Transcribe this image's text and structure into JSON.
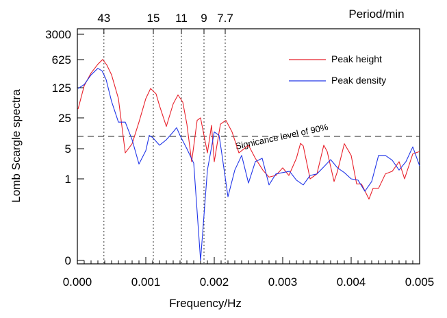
{
  "chart_data": {
    "type": "line",
    "xlabel": "Frequency/Hz",
    "ylabel": "Lomb Scargle spectra",
    "top_axis_label": "Period/min",
    "xlim": [
      0,
      0.005
    ],
    "x_ticks": [
      "0.000",
      "0.001",
      "0.002",
      "0.003",
      "0.004",
      "0.005"
    ],
    "x_tick_values": [
      0,
      0.001,
      0.002,
      0.003,
      0.004,
      0.005
    ],
    "y_ticks": [
      {
        "label": "3000",
        "value": 3000
      },
      {
        "label": "625",
        "value": 625
      },
      {
        "label": "125",
        "value": 125
      },
      {
        "label": "25",
        "value": 25
      },
      {
        "label": "5",
        "value": 5
      },
      {
        "label": "1",
        "value": 1
      },
      {
        "label": "0",
        "value": 0.001
      }
    ],
    "y_scale": "log",
    "top_ticks": [
      {
        "label": "43",
        "freq": 0.000388
      },
      {
        "label": "15",
        "freq": 0.00111
      },
      {
        "label": "11",
        "freq": 0.00152
      },
      {
        "label": "9",
        "freq": 0.00185
      },
      {
        "label": "7.7",
        "freq": 0.00216
      }
    ],
    "significance": {
      "label": "Signicance level of 90%",
      "value": 9.5
    },
    "legend_position": "top-right",
    "series": [
      {
        "name": "Peak height",
        "color": "#e8202a",
        "x": [
          1e-05,
          0.0001,
          0.0002,
          0.0003,
          0.00037,
          0.00043,
          0.0005,
          0.0006,
          0.0007,
          0.0008,
          0.0009,
          0.001,
          0.00107,
          0.00115,
          0.0012,
          0.0013,
          0.0014,
          0.00147,
          0.00154,
          0.0016,
          0.00167,
          0.00175,
          0.0018,
          0.0019,
          0.00196,
          0.002,
          0.00209,
          0.00217,
          0.00226,
          0.00236,
          0.0025,
          0.0026,
          0.00271,
          0.0028,
          0.0029,
          0.003,
          0.00309,
          0.0032,
          0.00326,
          0.0033,
          0.0034,
          0.0035,
          0.0036,
          0.00365,
          0.00375,
          0.0038,
          0.0039,
          0.004,
          0.00408,
          0.00415,
          0.00426,
          0.00432,
          0.0044,
          0.0045,
          0.0046,
          0.0047,
          0.00478,
          0.0049,
          0.005
        ],
        "y": [
          40,
          140,
          290,
          480,
          630,
          460,
          260,
          70,
          4,
          6.5,
          20,
          70,
          120,
          90,
          48,
          16,
          53,
          85,
          58,
          18,
          2.5,
          22,
          25,
          4,
          17,
          2.5,
          18,
          22,
          12,
          4,
          6,
          3,
          1.6,
          1.1,
          1.2,
          1.8,
          1.2,
          3,
          6.6,
          5.8,
          1,
          1.3,
          6,
          4.3,
          0.8,
          1.5,
          6.5,
          3.5,
          0.65,
          0.65,
          0.18,
          0.45,
          0.45,
          1.3,
          1.5,
          2.5,
          1.0,
          3.8,
          4.3
        ]
      },
      {
        "name": "Peak density",
        "color": "#2035e8",
        "x": [
          1e-05,
          0.0001,
          0.0002,
          0.0003,
          0.00036,
          0.00042,
          0.0005,
          0.0006,
          0.0007,
          0.0008,
          0.0009,
          0.001,
          0.00105,
          0.0011,
          0.0012,
          0.0013,
          0.0014,
          0.00145,
          0.0015,
          0.0016,
          0.0017,
          0.0018,
          0.0019,
          0.002,
          0.00207,
          0.0021,
          0.0022,
          0.0023,
          0.0024,
          0.0025,
          0.0026,
          0.0027,
          0.0028,
          0.0029,
          0.003,
          0.0031,
          0.0032,
          0.0033,
          0.0034,
          0.0035,
          0.0036,
          0.0037,
          0.0038,
          0.0039,
          0.004,
          0.0041,
          0.0042,
          0.0043,
          0.0044,
          0.0045,
          0.0046,
          0.0047,
          0.0048,
          0.0049,
          0.005
        ],
        "y": [
          120,
          150,
          260,
          380,
          330,
          200,
          60,
          20,
          20,
          8,
          2.2,
          4.5,
          10,
          9,
          6,
          8,
          12,
          15,
          10,
          5,
          2.3,
          0.001,
          1.6,
          12,
          10,
          5,
          0.22,
          1.6,
          3.5,
          0.7,
          2.5,
          3,
          0.6,
          1.3,
          1.4,
          1.5,
          0.9,
          0.6,
          1.2,
          1.3,
          1.9,
          2.8,
          1.8,
          1.4,
          1.0,
          0.9,
          0.35,
          0.8,
          3.5,
          3.5,
          2.7,
          1.6,
          2.5,
          5.5,
          2.0
        ]
      }
    ]
  }
}
